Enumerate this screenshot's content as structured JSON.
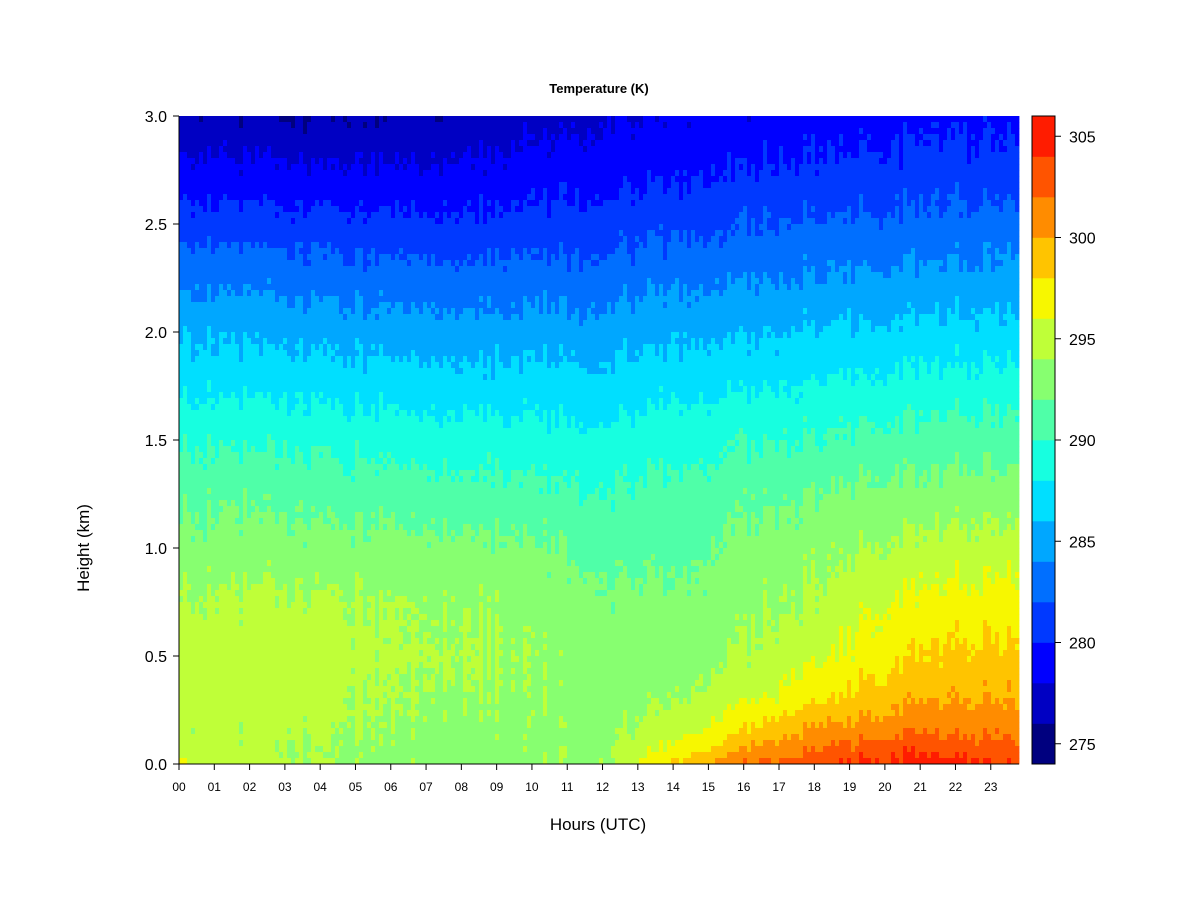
{
  "chart_data": {
    "type": "heatmap",
    "title": "Temperature (K)",
    "xlabel": "Hours (UTC)",
    "ylabel": "Height (km)",
    "xlim": [
      0,
      23.8
    ],
    "ylim": [
      0,
      3.0
    ],
    "x_ticks": [
      "00",
      "01",
      "02",
      "03",
      "04",
      "05",
      "06",
      "07",
      "08",
      "09",
      "10",
      "11",
      "12",
      "13",
      "14",
      "15",
      "16",
      "17",
      "18",
      "19",
      "20",
      "21",
      "22",
      "23"
    ],
    "y_ticks": [
      "0.0",
      "0.5",
      "1.0",
      "1.5",
      "2.0",
      "2.5",
      "3.0"
    ],
    "colorbar": {
      "range": [
        274,
        306
      ],
      "tick_values": [
        275,
        280,
        285,
        290,
        295,
        300,
        305
      ],
      "tick_labels": [
        "275",
        "280",
        "285",
        "290",
        "295",
        "300",
        "305"
      ],
      "levels": [
        274,
        276,
        278,
        280,
        282,
        284,
        286,
        288,
        290,
        292,
        294,
        296,
        298,
        300,
        302,
        304,
        306
      ],
      "colors": [
        "#00007f",
        "#0000c3",
        "#0000ff",
        "#0039ff",
        "#006fff",
        "#00a7ff",
        "#00dfff",
        "#17ffe0",
        "#4fffa8",
        "#87ff70",
        "#bfff38",
        "#f7f700",
        "#ffc400",
        "#ff8c00",
        "#ff5400",
        "#ff1c00",
        "#c30000"
      ]
    },
    "profile_heights_km": [
      0.0,
      0.05,
      0.15,
      0.3,
      0.5,
      0.75,
      1.0,
      1.25,
      1.5,
      1.75,
      2.0,
      2.25,
      2.5,
      2.75,
      3.0
    ],
    "profiles": [
      {
        "hour": 0,
        "temps_k": [
          296.5,
          295.0,
          294.5,
          295.0,
          295.2,
          294.3,
          292.8,
          291.5,
          289.8,
          287.6,
          285.8,
          283.5,
          281.2,
          278.8,
          276.5
        ]
      },
      {
        "hour": 3,
        "temps_k": [
          294.8,
          294.0,
          294.5,
          295.0,
          295.3,
          294.5,
          292.9,
          291.4,
          289.6,
          287.4,
          285.5,
          283.2,
          280.8,
          278.4,
          276.0
        ]
      },
      {
        "hour": 6,
        "temps_k": [
          293.5,
          293.5,
          293.7,
          294.0,
          294.3,
          294.0,
          292.6,
          291.0,
          289.2,
          287.0,
          285.0,
          282.8,
          280.5,
          278.2,
          276.0
        ]
      },
      {
        "hour": 9,
        "temps_k": [
          293.2,
          293.2,
          293.5,
          293.8,
          294.2,
          293.8,
          292.6,
          290.8,
          289.0,
          286.9,
          284.9,
          282.8,
          280.6,
          278.6,
          276.8
        ]
      },
      {
        "hour": 12,
        "temps_k": [
          294.0,
          293.8,
          293.4,
          293.2,
          293.0,
          292.6,
          291.6,
          290.2,
          288.6,
          286.8,
          285.0,
          283.0,
          281.0,
          279.3,
          277.8
        ]
      },
      {
        "hour": 14,
        "temps_k": [
          298.5,
          297.0,
          295.0,
          293.8,
          293.0,
          292.4,
          291.4,
          290.6,
          289.2,
          287.4,
          285.6,
          283.6,
          281.4,
          279.6,
          278.2
        ]
      },
      {
        "hour": 16,
        "temps_k": [
          302.0,
          300.5,
          298.0,
          295.5,
          294.2,
          293.4,
          292.6,
          291.4,
          289.8,
          287.8,
          285.8,
          283.8,
          281.8,
          280.0,
          278.6
        ]
      },
      {
        "hour": 18,
        "temps_k": [
          303.5,
          302.5,
          300.5,
          297.6,
          295.6,
          294.3,
          293.4,
          292.0,
          290.2,
          288.2,
          286.2,
          284.2,
          282.2,
          280.4,
          279.0
        ]
      },
      {
        "hour": 20,
        "temps_k": [
          304.6,
          303.6,
          301.4,
          299.2,
          297.4,
          295.8,
          294.2,
          292.6,
          290.6,
          288.6,
          286.4,
          284.4,
          282.4,
          280.6,
          279.2
        ]
      },
      {
        "hour": 21,
        "temps_k": [
          305.2,
          304.0,
          302.0,
          300.0,
          298.2,
          296.6,
          294.6,
          292.8,
          290.8,
          288.8,
          286.6,
          284.6,
          282.6,
          280.8,
          279.4
        ]
      },
      {
        "hour": 23.8,
        "temps_k": [
          304.0,
          303.0,
          301.5,
          300.0,
          298.6,
          297.0,
          295.0,
          293.0,
          291.0,
          289.0,
          286.8,
          284.8,
          282.8,
          281.0,
          279.6
        ]
      }
    ]
  }
}
